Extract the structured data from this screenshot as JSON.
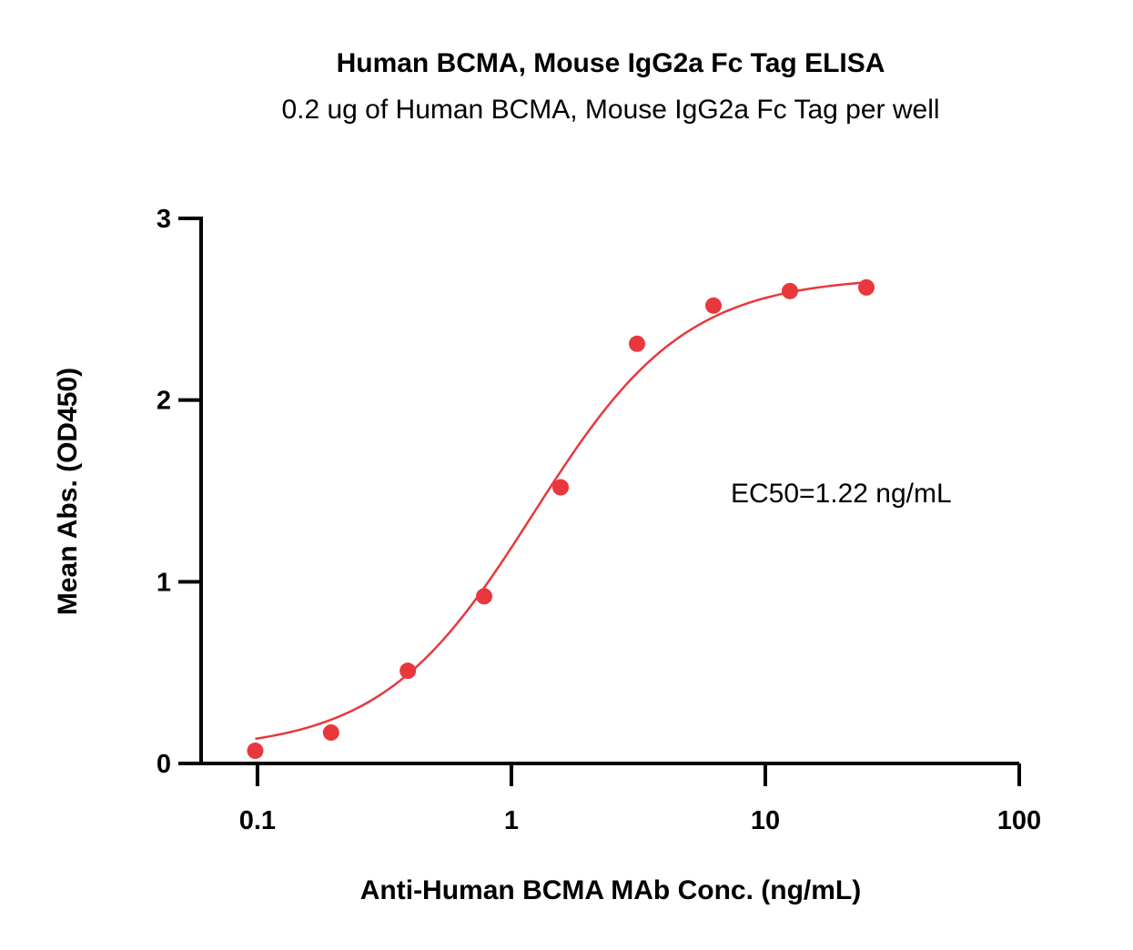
{
  "chart_data": {
    "type": "scatter",
    "title": "Human BCMA, Mouse IgG2a Fc Tag ELISA",
    "subtitle": "0.2 ug of Human BCMA, Mouse IgG2a Fc Tag per well",
    "xlabel": "Anti-Human BCMA MAb Conc. (ng/mL)",
    "ylabel": "Mean Abs. (OD450)",
    "x_scale": "log",
    "xlim": [
      0.06,
      100
    ],
    "ylim": [
      0,
      3
    ],
    "x_ticks": [
      0.1,
      1,
      10,
      100
    ],
    "x_tick_labels": [
      "0.1",
      "1",
      "10",
      "100"
    ],
    "y_ticks": [
      0,
      1,
      2,
      3
    ],
    "y_tick_labels": [
      "0",
      "1",
      "2",
      "3"
    ],
    "grid": false,
    "series": [
      {
        "color": "#e8383d",
        "x": [
          0.098,
          0.195,
          0.391,
          0.781,
          1.5625,
          3.125,
          6.25,
          12.5,
          25
        ],
        "y": [
          0.07,
          0.17,
          0.51,
          0.92,
          1.52,
          2.31,
          2.52,
          2.6,
          2.62
        ],
        "fit": {
          "model": "4PL",
          "bottom": 0.07,
          "top": 2.68,
          "ec50": 1.22,
          "hill": 1.45,
          "x_range": [
            0.098,
            25
          ]
        }
      }
    ],
    "annotations": [
      {
        "text": "EC50=1.22 ng/mL"
      }
    ]
  }
}
